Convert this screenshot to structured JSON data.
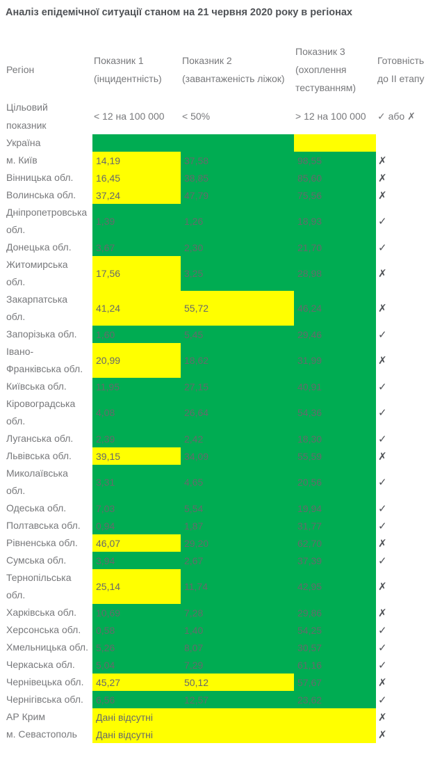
{
  "title": "Аналіз епідемічної ситуації станом на 21 червня 2020 року в регіонах",
  "colors": {
    "green": "#00AC52",
    "yellow": "#FFFF00"
  },
  "marks": {
    "pass": "✓",
    "fail": "✗"
  },
  "headers": {
    "region": "Регіон",
    "indicator1": "Показник 1\n(інцидентність)",
    "indicator2": "Показник 2\n(завантаженість ліжок)",
    "indicator3": "Показник 3\n(охоплення\nтестуванням)",
    "readiness": "Готовність\nдо II етапу"
  },
  "target": {
    "label": "Цільовий\nпоказник",
    "indicator1": "< 12 на 100 000",
    "indicator2": "< 50%",
    "indicator3": "> 12 на 100 000",
    "readiness": "✓ або ✗"
  },
  "no_data_text": "Дані відсутні",
  "rows": [
    {
      "region": "Україна",
      "cells": [
        {
          "text": "",
          "bg": "green"
        },
        {
          "text": "",
          "bg": "green"
        },
        {
          "text": "",
          "bg": "yellow"
        }
      ],
      "readiness": ""
    },
    {
      "region": "м. Київ",
      "cells": [
        {
          "text": "14,19",
          "bg": "yellow"
        },
        {
          "text": "37,58",
          "bg": "green"
        },
        {
          "text": "98,55",
          "bg": "green"
        }
      ],
      "readiness": "✗"
    },
    {
      "region": "Вінницька обл.",
      "cells": [
        {
          "text": "16,45",
          "bg": "yellow"
        },
        {
          "text": "38,85",
          "bg": "green"
        },
        {
          "text": "85,60",
          "bg": "green"
        }
      ],
      "readiness": "✗"
    },
    {
      "region": "Волинська обл.",
      "cells": [
        {
          "text": "37,24",
          "bg": "yellow"
        },
        {
          "text": "47,79",
          "bg": "green"
        },
        {
          "text": "75,56",
          "bg": "green"
        }
      ],
      "readiness": "✗"
    },
    {
      "region": "Дніпропетровська\nобл.",
      "cells": [
        {
          "text": "1,39",
          "bg": "green"
        },
        {
          "text": "1,26",
          "bg": "green"
        },
        {
          "text": "18,93",
          "bg": "green"
        }
      ],
      "readiness": "✓"
    },
    {
      "region": "Донецька обл.",
      "cells": [
        {
          "text": "3,67",
          "bg": "green"
        },
        {
          "text": "2,30",
          "bg": "green"
        },
        {
          "text": "21,70",
          "bg": "green"
        }
      ],
      "readiness": "✓"
    },
    {
      "region": "Житомирська\nобл.",
      "cells": [
        {
          "text": "17,56",
          "bg": "yellow"
        },
        {
          "text": "3,25",
          "bg": "green"
        },
        {
          "text": "28,98",
          "bg": "green"
        }
      ],
      "readiness": "✗"
    },
    {
      "region": "Закарпатська\nобл.",
      "cells": [
        {
          "text": "41,24",
          "bg": "yellow"
        },
        {
          "text": "55,72",
          "bg": "yellow"
        },
        {
          "text": "46,24",
          "bg": "green"
        }
      ],
      "readiness": "✗"
    },
    {
      "region": "Запорізька обл.",
      "cells": [
        {
          "text": "1,60",
          "bg": "green"
        },
        {
          "text": "5,45",
          "bg": "green"
        },
        {
          "text": "29,46",
          "bg": "green"
        }
      ],
      "readiness": "✓"
    },
    {
      "region": "Івано-\nФранківська обл.",
      "cells": [
        {
          "text": "20,99",
          "bg": "yellow"
        },
        {
          "text": "18,62",
          "bg": "green"
        },
        {
          "text": "31,99",
          "bg": "green"
        }
      ],
      "readiness": "✗"
    },
    {
      "region": "Київська обл.",
      "cells": [
        {
          "text": "11,95",
          "bg": "green"
        },
        {
          "text": "27,15",
          "bg": "green"
        },
        {
          "text": "40,91",
          "bg": "green"
        }
      ],
      "readiness": "✓"
    },
    {
      "region": "Кіровоградська\nобл.",
      "cells": [
        {
          "text": "4,08",
          "bg": "green"
        },
        {
          "text": "26,64",
          "bg": "green"
        },
        {
          "text": "54,36",
          "bg": "green"
        }
      ],
      "readiness": "✓"
    },
    {
      "region": "Луганська обл.",
      "cells": [
        {
          "text": "2,39",
          "bg": "green"
        },
        {
          "text": "2,42",
          "bg": "green"
        },
        {
          "text": "18,30",
          "bg": "green"
        }
      ],
      "readiness": "✓"
    },
    {
      "region": "Львівська обл.",
      "cells": [
        {
          "text": "39,15",
          "bg": "yellow"
        },
        {
          "text": "34,09",
          "bg": "green"
        },
        {
          "text": "55,59",
          "bg": "green"
        }
      ],
      "readiness": "✗"
    },
    {
      "region": "Миколаївська\nобл.",
      "cells": [
        {
          "text": "3,31",
          "bg": "green"
        },
        {
          "text": "4,65",
          "bg": "green"
        },
        {
          "text": "20,56",
          "bg": "green"
        }
      ],
      "readiness": "✓"
    },
    {
      "region": "Одеська обл.",
      "cells": [
        {
          "text": "7,03",
          "bg": "green"
        },
        {
          "text": "5,54",
          "bg": "green"
        },
        {
          "text": "19,94",
          "bg": "green"
        }
      ],
      "readiness": "✓"
    },
    {
      "region": "Полтавська обл.",
      "cells": [
        {
          "text": "0,94",
          "bg": "green"
        },
        {
          "text": "1,87",
          "bg": "green"
        },
        {
          "text": "31,77",
          "bg": "green"
        }
      ],
      "readiness": "✓"
    },
    {
      "region": "Рівненська обл.",
      "cells": [
        {
          "text": "46,07",
          "bg": "yellow"
        },
        {
          "text": "29,20",
          "bg": "green"
        },
        {
          "text": "62,70",
          "bg": "green"
        }
      ],
      "readiness": "✗"
    },
    {
      "region": "Сумська обл.",
      "cells": [
        {
          "text": "3,94",
          "bg": "green"
        },
        {
          "text": "2,67",
          "bg": "green"
        },
        {
          "text": "37,39",
          "bg": "green"
        }
      ],
      "readiness": "✓"
    },
    {
      "region": "Тернопільська\nобл.",
      "cells": [
        {
          "text": "25,14",
          "bg": "yellow"
        },
        {
          "text": "11,74",
          "bg": "green"
        },
        {
          "text": "42,95",
          "bg": "green"
        }
      ],
      "readiness": "✗"
    },
    {
      "region": "Харківська обл.",
      "cells": [
        {
          "text": "10,69",
          "bg": "green"
        },
        {
          "text": "7,28",
          "bg": "green"
        },
        {
          "text": "29,86",
          "bg": "green"
        }
      ],
      "readiness": "✗"
    },
    {
      "region": "Херсонська обл.",
      "cells": [
        {
          "text": "0,58",
          "bg": "green"
        },
        {
          "text": "1,40",
          "bg": "green"
        },
        {
          "text": "54,25",
          "bg": "green"
        }
      ],
      "readiness": "✓"
    },
    {
      "region": "Хмельницька обл.",
      "cells": [
        {
          "text": "5,26",
          "bg": "green"
        },
        {
          "text": "8,07",
          "bg": "green"
        },
        {
          "text": "30,57",
          "bg": "green"
        }
      ],
      "readiness": "✓"
    },
    {
      "region": "Черкаська обл.",
      "cells": [
        {
          "text": "5,04",
          "bg": "green"
        },
        {
          "text": "7,29",
          "bg": "green"
        },
        {
          "text": "61,16",
          "bg": "green"
        }
      ],
      "readiness": "✓"
    },
    {
      "region": "Чернівецька обл.",
      "cells": [
        {
          "text": "45,27",
          "bg": "yellow"
        },
        {
          "text": "50,12",
          "bg": "yellow"
        },
        {
          "text": "57,67",
          "bg": "green"
        }
      ],
      "readiness": "✗"
    },
    {
      "region": "Чернігівська обл.",
      "cells": [
        {
          "text": "6,56",
          "bg": "green"
        },
        {
          "text": "12,57",
          "bg": "green"
        },
        {
          "text": "23,62",
          "bg": "green"
        }
      ],
      "readiness": "✓"
    },
    {
      "region": "АР Крим",
      "cells": [
        {
          "text": "Дані відсутні",
          "bg": "yellow",
          "colspan": 3
        }
      ],
      "readiness": "✗"
    },
    {
      "region": "м. Севастополь",
      "cells": [
        {
          "text": "Дані відсутні",
          "bg": "yellow",
          "colspan": 3
        }
      ],
      "readiness": "✗"
    }
  ]
}
